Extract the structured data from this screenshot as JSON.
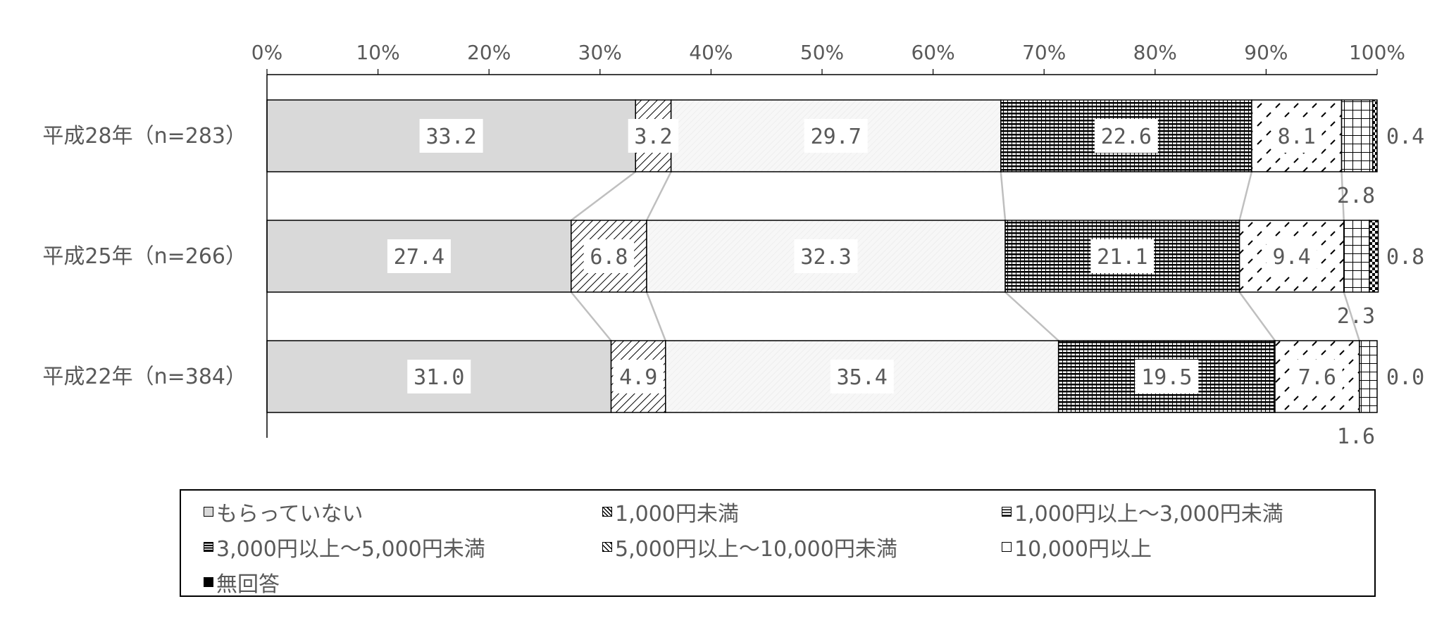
{
  "chart_data": {
    "type": "bar",
    "orientation": "horizontal",
    "stacked": "100%",
    "categories": [
      "平成28年（n=283）",
      "平成25年（n=266）",
      "平成22年（n=384）"
    ],
    "series": [
      {
        "name": "もらっていない",
        "values": [
          33.2,
          27.4,
          31.0
        ],
        "labels": [
          "33.2",
          "27.4",
          "31.0"
        ],
        "color": "#d9d9d9",
        "pattern": "solid"
      },
      {
        "name": "1,000円未満",
        "values": [
          3.2,
          6.8,
          4.9
        ],
        "labels": [
          "3.2",
          "6.8",
          "4.9"
        ],
        "color": "#ffffff",
        "pattern": "diagonal"
      },
      {
        "name": "1,000円以上～3,000円未満",
        "values": [
          29.7,
          32.3,
          35.4
        ],
        "labels": [
          "29.7",
          "32.3",
          "35.4"
        ],
        "color": "#f4f4f4",
        "pattern": "light"
      },
      {
        "name": "3,000円以上～5,000円未満",
        "values": [
          22.6,
          21.1,
          19.5
        ],
        "labels": [
          "22.6",
          "21.1",
          "19.5"
        ],
        "color": "#ffffff",
        "pattern": "horizontal"
      },
      {
        "name": "5,000円以上～10,000円未満",
        "values": [
          8.1,
          9.4,
          7.6
        ],
        "labels": [
          "8.1",
          "9.4",
          "7.6"
        ],
        "color": "#ffffff",
        "pattern": "dash"
      },
      {
        "name": "10,000円以上",
        "values": [
          2.8,
          2.3,
          1.6
        ],
        "labels": [
          "2.8",
          "2.3",
          "1.6"
        ],
        "color": "#ffffff",
        "pattern": "grid"
      },
      {
        "name": "無回答",
        "values": [
          0.4,
          0.8,
          0.0
        ],
        "labels": [
          "0.4",
          "0.8",
          "0.0"
        ],
        "color": "#000000",
        "pattern": "checker"
      }
    ],
    "x_ticks": [
      "0%",
      "10%",
      "20%",
      "30%",
      "40%",
      "50%",
      "60%",
      "70%",
      "80%",
      "90%",
      "100%"
    ],
    "xlim": [
      0,
      100
    ],
    "legend_position": "bottom",
    "grid": false
  },
  "legend": {
    "items": [
      "もらっていない",
      "1,000円未満",
      "1,000円以上～3,000円未満",
      "3,000円以上～5,000円未満",
      "5,000円以上～10,000円未満",
      "10,000円以上",
      "無回答"
    ]
  }
}
